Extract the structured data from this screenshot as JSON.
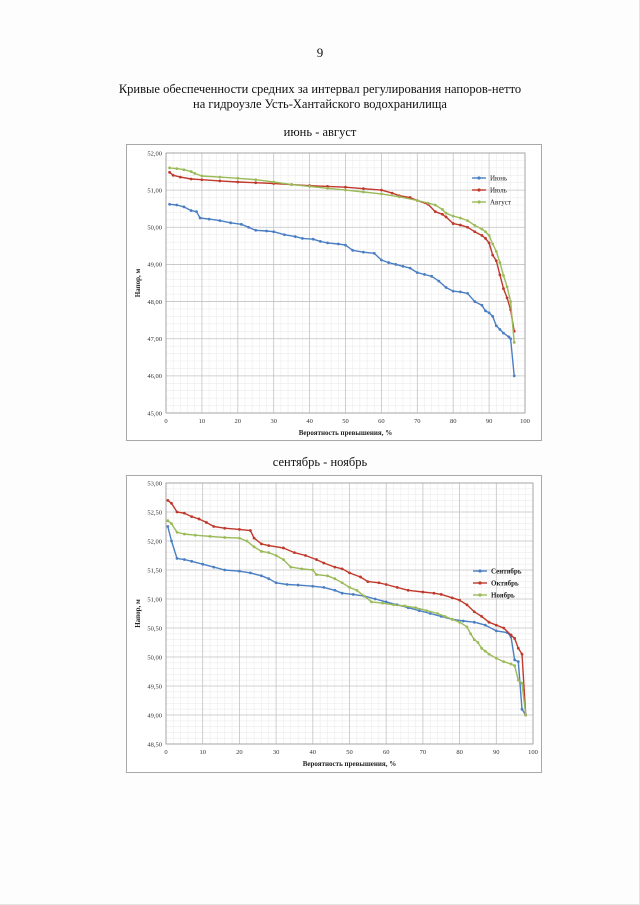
{
  "page": {
    "number": "9",
    "title_lines": [
      "Кривые обеспеченности средних за интервал регулирования напоров-нетто",
      "на гидроузле Усть-Хантайского водохранилища"
    ]
  },
  "colors": {
    "blue": "#4a7fc4",
    "red": "#c0392b",
    "green": "#9bbb59",
    "grid": "#d6d6d6"
  },
  "chart_data": [
    {
      "type": "line",
      "caption": "июнь - август",
      "xlabel": "Вероятность превышения, %",
      "ylabel": "Напор, м",
      "xlim": [
        0,
        100
      ],
      "ylim": [
        45,
        52
      ],
      "xticks": [
        0,
        10,
        20,
        30,
        40,
        50,
        60,
        70,
        80,
        90,
        100
      ],
      "yticks": [
        "45,00",
        "46,00",
        "47,00",
        "48,00",
        "49,00",
        "50,00",
        "51,00",
        "52,00"
      ],
      "grid": true,
      "legend_position": "right",
      "series": [
        {
          "name": "Июнь",
          "color": "#4a7fc4",
          "points": [
            [
              1,
              50.62
            ],
            [
              3,
              50.6
            ],
            [
              5,
              50.55
            ],
            [
              7,
              50.45
            ],
            [
              8.5,
              50.42
            ],
            [
              9.5,
              50.25
            ],
            [
              12,
              50.22
            ],
            [
              15,
              50.18
            ],
            [
              18,
              50.12
            ],
            [
              21,
              50.08
            ],
            [
              23,
              50.0
            ],
            [
              25,
              49.92
            ],
            [
              28,
              49.9
            ],
            [
              30,
              49.88
            ],
            [
              33,
              49.8
            ],
            [
              36,
              49.75
            ],
            [
              38,
              49.7
            ],
            [
              41,
              49.68
            ],
            [
              43,
              49.62
            ],
            [
              45,
              49.58
            ],
            [
              48,
              49.55
            ],
            [
              50,
              49.52
            ],
            [
              52,
              49.38
            ],
            [
              55,
              49.33
            ],
            [
              58,
              49.3
            ],
            [
              60,
              49.12
            ],
            [
              62,
              49.05
            ],
            [
              64,
              49.0
            ],
            [
              66,
              48.95
            ],
            [
              68,
              48.9
            ],
            [
              70,
              48.78
            ],
            [
              72,
              48.73
            ],
            [
              74,
              48.68
            ],
            [
              76,
              48.55
            ],
            [
              78,
              48.38
            ],
            [
              80,
              48.28
            ],
            [
              82,
              48.26
            ],
            [
              84,
              48.22
            ],
            [
              86,
              48.0
            ],
            [
              88,
              47.9
            ],
            [
              89,
              47.75
            ],
            [
              90,
              47.7
            ],
            [
              91,
              47.6
            ],
            [
              92,
              47.35
            ],
            [
              93,
              47.25
            ],
            [
              94,
              47.15
            ],
            [
              95.5,
              47.05
            ],
            [
              96,
              47.0
            ],
            [
              97,
              46.0
            ]
          ]
        },
        {
          "name": "Июль",
          "color": "#c0392b",
          "points": [
            [
              1,
              51.48
            ],
            [
              2,
              51.4
            ],
            [
              4,
              51.35
            ],
            [
              7,
              51.3
            ],
            [
              10,
              51.28
            ],
            [
              15,
              51.25
            ],
            [
              20,
              51.22
            ],
            [
              25,
              51.2
            ],
            [
              30,
              51.18
            ],
            [
              35,
              51.15
            ],
            [
              40,
              51.12
            ],
            [
              45,
              51.1
            ],
            [
              50,
              51.08
            ],
            [
              55,
              51.04
            ],
            [
              60,
              51.0
            ],
            [
              63,
              50.92
            ],
            [
              65,
              50.85
            ],
            [
              68,
              50.8
            ],
            [
              70,
              50.72
            ],
            [
              73,
              50.62
            ],
            [
              75,
              50.42
            ],
            [
              77,
              50.35
            ],
            [
              78,
              50.28
            ],
            [
              80,
              50.1
            ],
            [
              82,
              50.06
            ],
            [
              84,
              50.0
            ],
            [
              86,
              49.88
            ],
            [
              88,
              49.78
            ],
            [
              89,
              49.7
            ],
            [
              90,
              49.58
            ],
            [
              91,
              49.25
            ],
            [
              92,
              49.1
            ],
            [
              93,
              48.72
            ],
            [
              94,
              48.35
            ],
            [
              95,
              48.1
            ],
            [
              96,
              47.78
            ],
            [
              97,
              47.2
            ]
          ]
        },
        {
          "name": "Август",
          "color": "#9bbb59",
          "points": [
            [
              1,
              51.6
            ],
            [
              3,
              51.58
            ],
            [
              5,
              51.55
            ],
            [
              7,
              51.5
            ],
            [
              8,
              51.45
            ],
            [
              10,
              51.38
            ],
            [
              15,
              51.35
            ],
            [
              20,
              51.32
            ],
            [
              25,
              51.28
            ],
            [
              30,
              51.22
            ],
            [
              35,
              51.15
            ],
            [
              40,
              51.1
            ],
            [
              45,
              51.05
            ],
            [
              50,
              51.0
            ],
            [
              55,
              50.95
            ],
            [
              60,
              50.9
            ],
            [
              65,
              50.82
            ],
            [
              70,
              50.72
            ],
            [
              73,
              50.65
            ],
            [
              75,
              50.6
            ],
            [
              77,
              50.48
            ],
            [
              78,
              50.38
            ],
            [
              80,
              50.3
            ],
            [
              82,
              50.25
            ],
            [
              84,
              50.18
            ],
            [
              86,
              50.05
            ],
            [
              88,
              49.95
            ],
            [
              89,
              49.88
            ],
            [
              90,
              49.78
            ],
            [
              91,
              49.55
            ],
            [
              92,
              49.35
            ],
            [
              93,
              49.05
            ],
            [
              94,
              48.7
            ],
            [
              95,
              48.4
            ],
            [
              96,
              48.0
            ],
            [
              97,
              46.9
            ]
          ]
        }
      ]
    },
    {
      "type": "line",
      "caption": "сентябрь - ноябрь",
      "xlabel": "Вероятность превышения, %",
      "ylabel": "Напор, м",
      "xlim": [
        0,
        100
      ],
      "ylim": [
        48.5,
        53
      ],
      "xticks": [
        0,
        10,
        20,
        30,
        40,
        50,
        60,
        70,
        80,
        90,
        100
      ],
      "yticks": [
        "48,50",
        "49,00",
        "49,50",
        "50,00",
        "50,50",
        "51,00",
        "51,50",
        "52,00",
        "52,50",
        "53,00"
      ],
      "grid": true,
      "legend_position": "right",
      "series": [
        {
          "name": "Сентябрь",
          "color": "#4a7fc4",
          "points": [
            [
              0.5,
              52.25
            ],
            [
              1.5,
              52.0
            ],
            [
              3,
              51.7
            ],
            [
              5,
              51.68
            ],
            [
              7,
              51.65
            ],
            [
              10,
              51.6
            ],
            [
              13,
              51.55
            ],
            [
              16,
              51.5
            ],
            [
              20,
              51.48
            ],
            [
              23,
              51.45
            ],
            [
              26,
              51.4
            ],
            [
              28,
              51.35
            ],
            [
              30,
              51.28
            ],
            [
              33,
              51.25
            ],
            [
              36,
              51.24
            ],
            [
              40,
              51.22
            ],
            [
              43,
              51.2
            ],
            [
              46,
              51.15
            ],
            [
              48,
              51.1
            ],
            [
              51,
              51.08
            ],
            [
              54,
              51.05
            ],
            [
              57,
              51.0
            ],
            [
              60,
              50.95
            ],
            [
              63,
              50.9
            ],
            [
              66,
              50.85
            ],
            [
              69,
              50.8
            ],
            [
              72,
              50.75
            ],
            [
              75,
              50.7
            ],
            [
              78,
              50.65
            ],
            [
              81,
              50.62
            ],
            [
              84,
              50.6
            ],
            [
              87,
              50.55
            ],
            [
              90,
              50.45
            ],
            [
              93,
              50.42
            ],
            [
              94,
              50.35
            ],
            [
              95,
              49.95
            ],
            [
              96,
              49.92
            ],
            [
              97,
              49.1
            ],
            [
              98,
              49.0
            ]
          ]
        },
        {
          "name": "Октябрь",
          "color": "#c0392b",
          "points": [
            [
              0.5,
              52.7
            ],
            [
              1.5,
              52.65
            ],
            [
              3,
              52.5
            ],
            [
              5,
              52.48
            ],
            [
              7,
              52.42
            ],
            [
              9,
              52.38
            ],
            [
              11,
              52.32
            ],
            [
              13,
              52.25
            ],
            [
              16,
              52.22
            ],
            [
              20,
              52.2
            ],
            [
              23,
              52.18
            ],
            [
              24,
              52.05
            ],
            [
              26,
              51.95
            ],
            [
              28,
              51.92
            ],
            [
              32,
              51.88
            ],
            [
              35,
              51.8
            ],
            [
              38,
              51.75
            ],
            [
              41,
              51.68
            ],
            [
              43,
              51.62
            ],
            [
              46,
              51.55
            ],
            [
              48,
              51.52
            ],
            [
              50,
              51.45
            ],
            [
              53,
              51.38
            ],
            [
              55,
              51.3
            ],
            [
              58,
              51.28
            ],
            [
              60,
              51.25
            ],
            [
              63,
              51.2
            ],
            [
              66,
              51.15
            ],
            [
              70,
              51.12
            ],
            [
              73,
              51.1
            ],
            [
              75,
              51.08
            ],
            [
              78,
              51.02
            ],
            [
              80,
              50.98
            ],
            [
              82,
              50.9
            ],
            [
              84,
              50.78
            ],
            [
              86,
              50.7
            ],
            [
              88,
              50.6
            ],
            [
              90,
              50.55
            ],
            [
              92,
              50.5
            ],
            [
              94,
              50.38
            ],
            [
              95,
              50.32
            ],
            [
              96,
              50.15
            ],
            [
              97,
              50.05
            ],
            [
              98,
              49.0
            ]
          ]
        },
        {
          "name": "Ноябрь",
          "color": "#9bbb59",
          "points": [
            [
              0.5,
              52.35
            ],
            [
              1.5,
              52.3
            ],
            [
              3,
              52.15
            ],
            [
              5,
              52.12
            ],
            [
              8,
              52.1
            ],
            [
              12,
              52.08
            ],
            [
              16,
              52.06
            ],
            [
              20,
              52.05
            ],
            [
              22,
              52.0
            ],
            [
              24,
              51.9
            ],
            [
              26,
              51.82
            ],
            [
              28,
              51.8
            ],
            [
              30,
              51.75
            ],
            [
              32,
              51.68
            ],
            [
              34,
              51.55
            ],
            [
              37,
              51.52
            ],
            [
              40,
              51.5
            ],
            [
              41,
              51.42
            ],
            [
              44,
              51.4
            ],
            [
              46,
              51.35
            ],
            [
              48,
              51.28
            ],
            [
              50,
              51.2
            ],
            [
              52,
              51.15
            ],
            [
              54,
              51.05
            ],
            [
              56,
              50.95
            ],
            [
              59,
              50.93
            ],
            [
              62,
              50.9
            ],
            [
              65,
              50.88
            ],
            [
              68,
              50.85
            ],
            [
              71,
              50.8
            ],
            [
              74,
              50.75
            ],
            [
              76,
              50.7
            ],
            [
              78,
              50.65
            ],
            [
              80,
              50.6
            ],
            [
              82,
              50.52
            ],
            [
              83,
              50.4
            ],
            [
              84,
              50.3
            ],
            [
              85,
              50.25
            ],
            [
              86,
              50.15
            ],
            [
              87,
              50.1
            ],
            [
              88,
              50.05
            ],
            [
              90,
              49.98
            ],
            [
              92,
              49.92
            ],
            [
              94,
              49.88
            ],
            [
              95,
              49.85
            ],
            [
              96,
              49.6
            ],
            [
              97,
              49.55
            ],
            [
              98,
              49.0
            ]
          ]
        }
      ]
    }
  ]
}
